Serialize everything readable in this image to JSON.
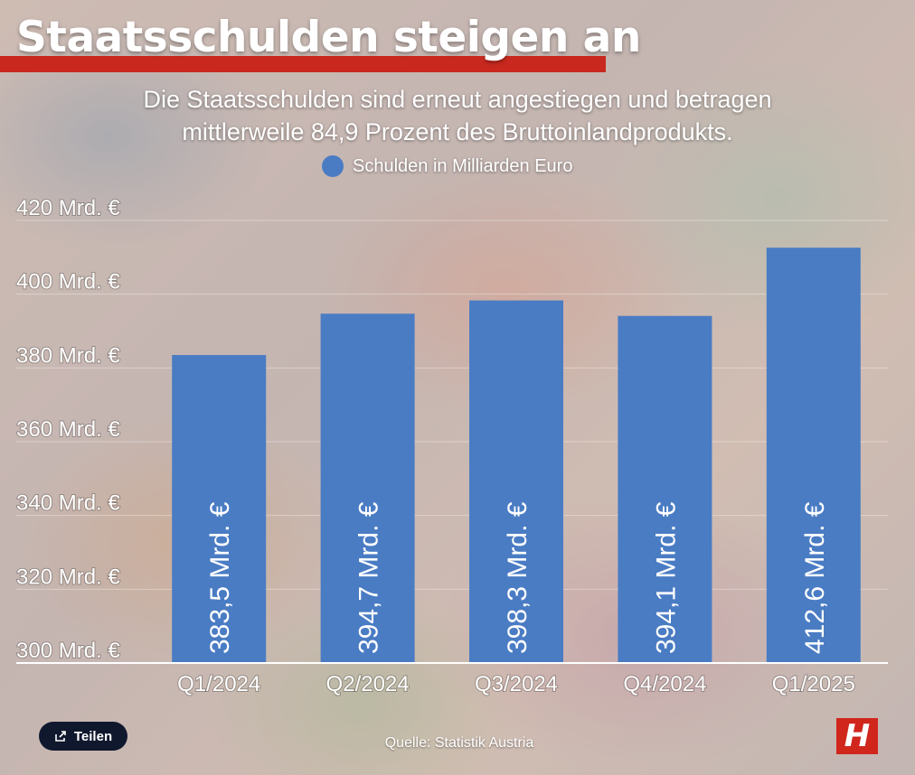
{
  "header": {
    "title": "Staatsschulden steigen an",
    "subtitle_line1": "Die Staatsschulden sind erneut angestiegen und betragen",
    "subtitle_line2": "mittlerweile 84,9 Prozent des Bruttoinlandprodukts."
  },
  "colors": {
    "bar": "#4a7cc4",
    "accent": "#c8281e",
    "gridline": "#ffffff"
  },
  "chart_data": {
    "type": "bar",
    "categories": [
      "Q1/2024",
      "Q2/2024",
      "Q3/2024",
      "Q4/2024",
      "Q1/2025"
    ],
    "series": [
      {
        "name": "Schulden in Milliarden Euro",
        "values": [
          383.5,
          394.7,
          398.3,
          394.1,
          412.6
        ],
        "data_labels": [
          "383,5 Mrd. €",
          "394,7 Mrd. €",
          "398,3 Mrd. €",
          "394,1 Mrd. €",
          "412,6 Mrd. €"
        ]
      }
    ],
    "ylim": [
      300,
      420
    ],
    "yticks": [
      300,
      320,
      340,
      360,
      380,
      400,
      420
    ],
    "ytick_labels": [
      "300 Mrd. €",
      "320 Mrd. €",
      "340 Mrd. €",
      "360 Mrd. €",
      "380 Mrd. €",
      "400 Mrd. €",
      "420 Mrd. €"
    ],
    "grid": true,
    "legend": "top-center"
  },
  "footer": {
    "share_label": "Teilen",
    "share_icon": "share-icon",
    "source": "Quelle: Statistik Austria",
    "logo_letter": "H"
  }
}
